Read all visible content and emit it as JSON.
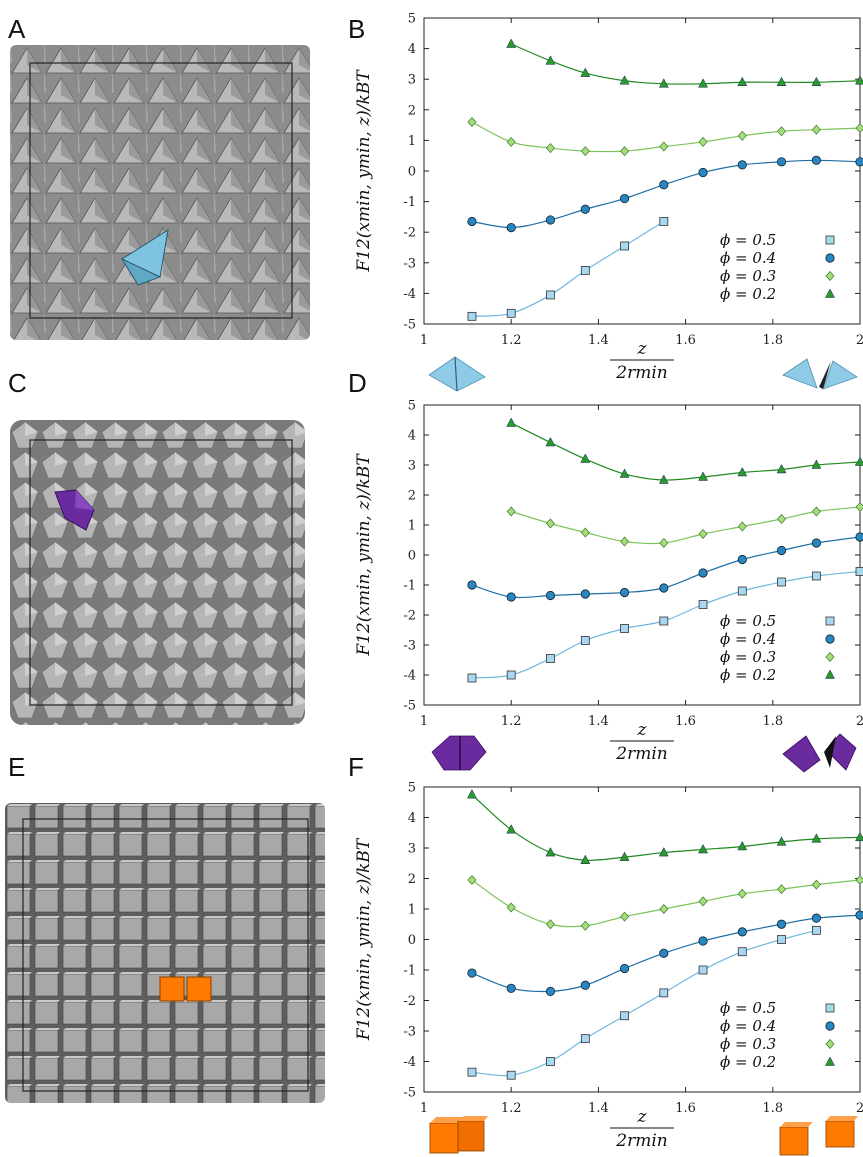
{
  "panel_letters": [
    "A",
    "B",
    "C",
    "D",
    "E",
    "F"
  ],
  "colors": {
    "phi_0.5": "#a8d8f0",
    "phi_0.4": "#2a86c0",
    "phi_0.3": "#a6dc7c",
    "phi_0.2": "#2a9a2a",
    "tetra_highlight": "#7ec4e0",
    "bipyramid_highlight": "#6a2b9e",
    "cube_highlight": "#ff7a00"
  },
  "shared_labels": {
    "ylabel": "F12(xmin, ymin, z)/kBT",
    "xlabel_num": "z",
    "xlabel_den": "2rmin"
  },
  "chart_data": [
    {
      "type": "line",
      "panel": "B",
      "xlim": [
        1,
        2
      ],
      "ylim": [
        -5,
        5
      ],
      "xticks": [
        "1",
        "1.2",
        "1.4",
        "1.6",
        "1.8",
        "2"
      ],
      "yticks": [
        "-5",
        "-4",
        "-3",
        "-2",
        "-1",
        "0",
        "1",
        "2",
        "3",
        "4",
        "5"
      ],
      "legend": [
        "ϕ = 0.5",
        "ϕ = 0.4",
        "ϕ = 0.3",
        "ϕ = 0.2"
      ],
      "legend_position": "bottom-right",
      "series": [
        {
          "name": "ϕ = 0.5",
          "marker": "square",
          "x": [
            1.11,
            1.2,
            1.29,
            1.37,
            1.46,
            1.55
          ],
          "y": [
            -4.75,
            -4.65,
            -4.05,
            -3.25,
            -2.45,
            -1.65
          ]
        },
        {
          "name": "ϕ = 0.4",
          "marker": "circle",
          "x": [
            1.11,
            1.2,
            1.29,
            1.37,
            1.46,
            1.55,
            1.64,
            1.73,
            1.82,
            1.9,
            2.0
          ],
          "y": [
            -1.65,
            -1.85,
            -1.6,
            -1.25,
            -0.9,
            -0.45,
            -0.05,
            0.2,
            0.3,
            0.35,
            0.3
          ]
        },
        {
          "name": "ϕ = 0.3",
          "marker": "diamond",
          "x": [
            1.11,
            1.2,
            1.29,
            1.37,
            1.46,
            1.55,
            1.64,
            1.73,
            1.82,
            1.9,
            2.0
          ],
          "y": [
            1.6,
            0.95,
            0.75,
            0.65,
            0.65,
            0.8,
            0.95,
            1.15,
            1.3,
            1.35,
            1.4
          ]
        },
        {
          "name": "ϕ = 0.2",
          "marker": "triangle",
          "x": [
            1.2,
            1.29,
            1.37,
            1.46,
            1.55,
            1.64,
            1.73,
            1.82,
            1.9,
            2.0
          ],
          "y": [
            4.15,
            3.6,
            3.2,
            2.95,
            2.85,
            2.85,
            2.9,
            2.9,
            2.9,
            2.95
          ]
        }
      ]
    },
    {
      "type": "line",
      "panel": "D",
      "xlim": [
        1,
        2
      ],
      "ylim": [
        -5,
        5
      ],
      "xticks": [
        "1",
        "1.2",
        "1.4",
        "1.6",
        "1.8",
        "2"
      ],
      "yticks": [
        "-5",
        "-4",
        "-3",
        "-2",
        "-1",
        "0",
        "1",
        "2",
        "3",
        "4",
        "5"
      ],
      "legend": [
        "ϕ = 0.5",
        "ϕ = 0.4",
        "ϕ = 0.3",
        "ϕ = 0.2"
      ],
      "legend_position": "bottom-right",
      "series": [
        {
          "name": "ϕ = 0.5",
          "marker": "square",
          "x": [
            1.11,
            1.2,
            1.29,
            1.37,
            1.46,
            1.55,
            1.64,
            1.73,
            1.82,
            1.9,
            2.0
          ],
          "y": [
            -4.1,
            -4.0,
            -3.45,
            -2.85,
            -2.45,
            -2.2,
            -1.65,
            -1.2,
            -0.9,
            -0.7,
            -0.55
          ]
        },
        {
          "name": "ϕ = 0.4",
          "marker": "circle",
          "x": [
            1.11,
            1.2,
            1.29,
            1.37,
            1.46,
            1.55,
            1.64,
            1.73,
            1.82,
            1.9,
            2.0
          ],
          "y": [
            -1.0,
            -1.4,
            -1.35,
            -1.3,
            -1.25,
            -1.1,
            -0.6,
            -0.15,
            0.15,
            0.4,
            0.6
          ]
        },
        {
          "name": "ϕ = 0.3",
          "marker": "diamond",
          "x": [
            1.2,
            1.29,
            1.37,
            1.46,
            1.55,
            1.64,
            1.73,
            1.82,
            1.9,
            2.0
          ],
          "y": [
            1.45,
            1.05,
            0.75,
            0.45,
            0.4,
            0.7,
            0.95,
            1.2,
            1.45,
            1.6
          ]
        },
        {
          "name": "ϕ = 0.2",
          "marker": "triangle",
          "x": [
            1.2,
            1.29,
            1.37,
            1.46,
            1.55,
            1.64,
            1.73,
            1.82,
            1.9,
            2.0
          ],
          "y": [
            4.4,
            3.75,
            3.2,
            2.7,
            2.5,
            2.6,
            2.75,
            2.85,
            3.0,
            3.1
          ]
        }
      ]
    },
    {
      "type": "line",
      "panel": "F",
      "xlim": [
        1,
        2
      ],
      "ylim": [
        -5,
        5
      ],
      "xticks": [
        "1",
        "1.2",
        "1.4",
        "1.6",
        "1.8",
        "2"
      ],
      "yticks": [
        "-5",
        "-4",
        "-3",
        "-2",
        "-1",
        "0",
        "1",
        "2",
        "3",
        "4",
        "5"
      ],
      "legend": [
        "ϕ = 0.5",
        "ϕ = 0.4",
        "ϕ = 0.3",
        "ϕ = 0.2"
      ],
      "legend_position": "bottom-right",
      "series": [
        {
          "name": "ϕ = 0.5",
          "marker": "square",
          "x": [
            1.11,
            1.2,
            1.29,
            1.37,
            1.46,
            1.55,
            1.64,
            1.73,
            1.82,
            1.9
          ],
          "y": [
            -4.35,
            -4.45,
            -4.0,
            -3.25,
            -2.5,
            -1.75,
            -1.0,
            -0.4,
            0.0,
            0.3
          ]
        },
        {
          "name": "ϕ = 0.4",
          "marker": "circle",
          "x": [
            1.11,
            1.2,
            1.29,
            1.37,
            1.46,
            1.55,
            1.64,
            1.73,
            1.82,
            1.9,
            2.0
          ],
          "y": [
            -1.1,
            -1.6,
            -1.7,
            -1.5,
            -0.95,
            -0.45,
            -0.05,
            0.25,
            0.5,
            0.7,
            0.8
          ]
        },
        {
          "name": "ϕ = 0.3",
          "marker": "diamond",
          "x": [
            1.11,
            1.2,
            1.29,
            1.37,
            1.46,
            1.55,
            1.64,
            1.73,
            1.82,
            1.9,
            2.0
          ],
          "y": [
            1.95,
            1.05,
            0.5,
            0.45,
            0.75,
            1.0,
            1.25,
            1.5,
            1.65,
            1.8,
            1.95
          ]
        },
        {
          "name": "ϕ = 0.2",
          "marker": "triangle",
          "x": [
            1.11,
            1.2,
            1.29,
            1.37,
            1.46,
            1.55,
            1.64,
            1.73,
            1.82,
            1.9,
            2.0
          ],
          "y": [
            4.75,
            3.6,
            2.85,
            2.6,
            2.7,
            2.85,
            2.95,
            3.05,
            3.2,
            3.3,
            3.35
          ]
        }
      ]
    }
  ]
}
